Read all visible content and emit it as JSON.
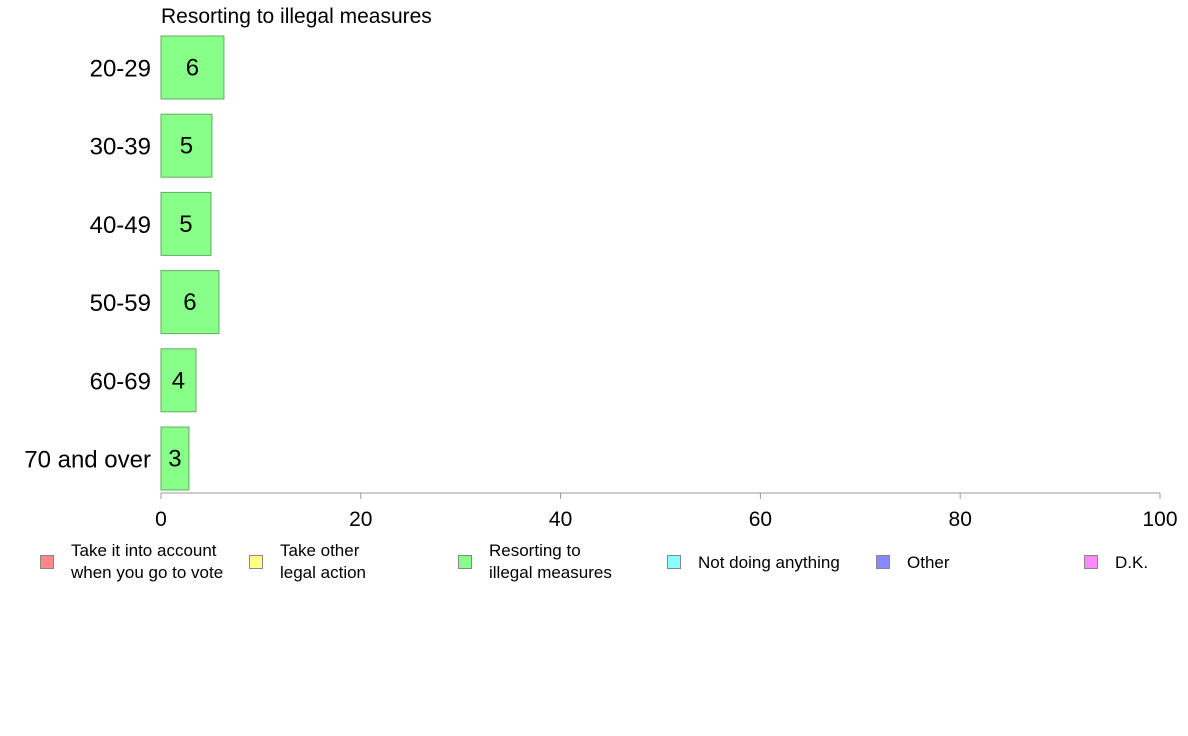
{
  "chart_data": {
    "type": "bar",
    "orientation": "horizontal",
    "title": "Resorting to illegal measures",
    "categories": [
      "20-29",
      "30-39",
      "40-49",
      "50-59",
      "60-69",
      "70 and over"
    ],
    "series": [
      {
        "name": "Resorting to illegal measures",
        "values": [
          6.3,
          5.1,
          5.0,
          5.8,
          3.5,
          2.8
        ],
        "labels": [
          "6",
          "5",
          "5",
          "6",
          "4",
          "3"
        ],
        "color": "#88FF88"
      }
    ],
    "xlim": [
      0,
      100
    ],
    "xticks": [
      "0",
      "20",
      "40",
      "60",
      "80",
      "100"
    ],
    "xlabel": "",
    "ylabel": "",
    "grid": false,
    "legend_position": "bottom",
    "legend": [
      {
        "label": "Take it into account\nwhen you go to vote",
        "color": "#FF8888"
      },
      {
        "label": "Take other\nlegal action",
        "color": "#FFFF88"
      },
      {
        "label": "Resorting to\nillegal measures",
        "color": "#88FF88"
      },
      {
        "label": "Not doing anything",
        "color": "#88FFFF"
      },
      {
        "label": "Other",
        "color": "#8888FF"
      },
      {
        "label": "D.K.",
        "color": "#FF88FF"
      }
    ]
  },
  "colors": {
    "bar_stroke": "#66AA66",
    "axis": "#999999"
  }
}
